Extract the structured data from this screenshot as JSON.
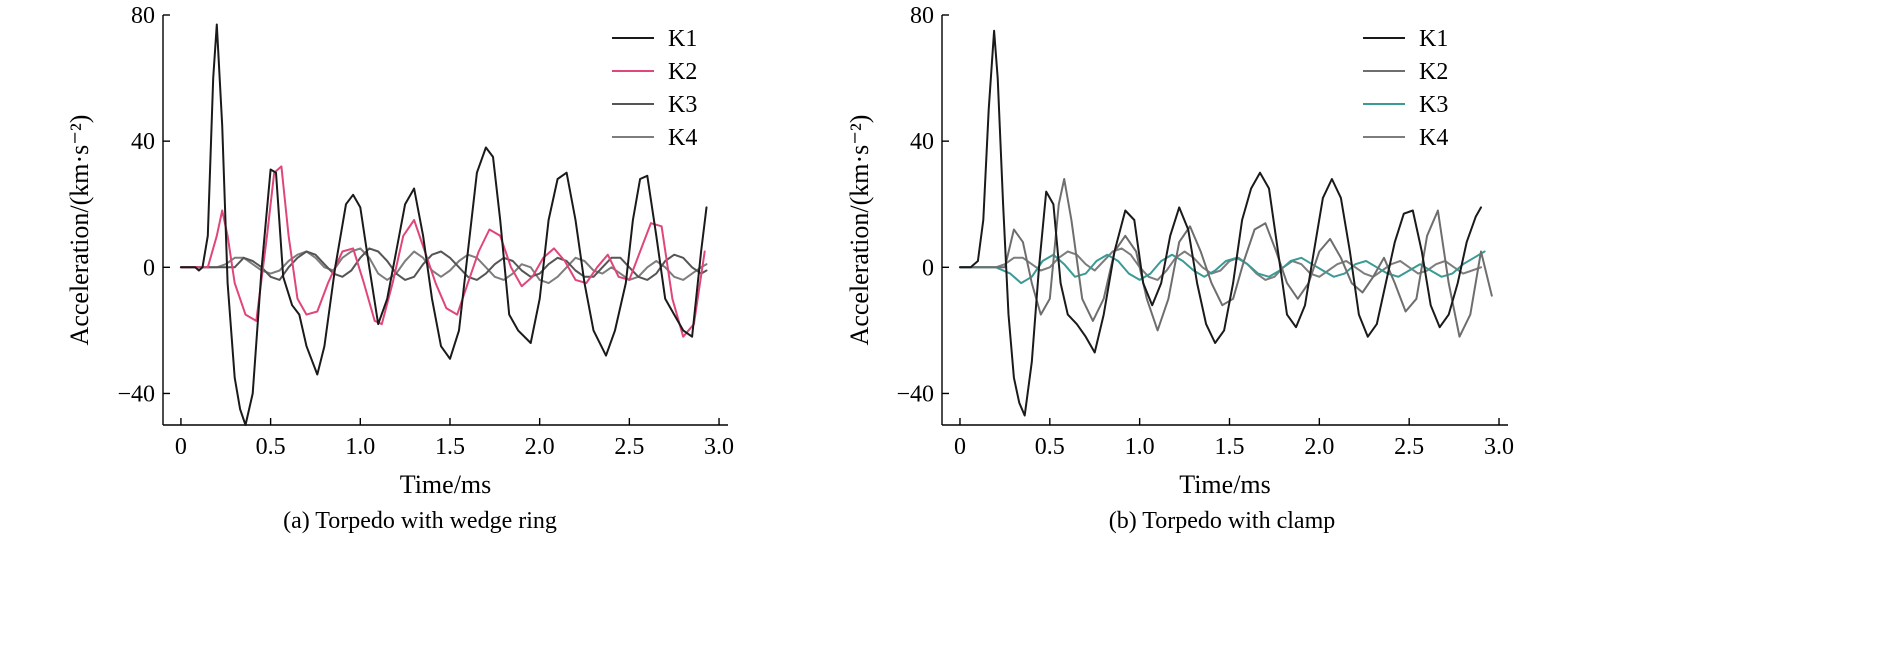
{
  "colors": {
    "K1": "#1a1a1a",
    "K2": "#e0457b",
    "K2b": "#6e6e6e",
    "K3": "#555555",
    "K4": "#7d7d7d",
    "K3teal": "#3a9a94"
  },
  "chart_data": [
    {
      "type": "line",
      "caption": "(a) Torpedo with wedge ring",
      "xlabel": "Time/ms",
      "ylabel": "Acceleration/(km·s⁻²)",
      "xlim": [
        -0.1,
        3.05
      ],
      "ylim": [
        -50,
        80
      ],
      "xticks": [
        0,
        0.5,
        1.0,
        1.5,
        2.0,
        2.5,
        3.0
      ],
      "xtick_labels": [
        "0",
        "0.5",
        "1.0",
        "1.5",
        "2.0",
        "2.5",
        "3.0"
      ],
      "yticks": [
        -40,
        0,
        40,
        80
      ],
      "ytick_labels": [
        "−40",
        "0",
        "40",
        "80"
      ],
      "legend_position": "top-right",
      "series": [
        {
          "name": "K1",
          "color_key": "K1",
          "x": [
            0,
            0.08,
            0.1,
            0.12,
            0.15,
            0.18,
            0.2,
            0.23,
            0.26,
            0.3,
            0.33,
            0.36,
            0.4,
            0.45,
            0.5,
            0.53,
            0.57,
            0.62,
            0.66,
            0.7,
            0.76,
            0.8,
            0.86,
            0.92,
            0.96,
            1.0,
            1.05,
            1.1,
            1.15,
            1.2,
            1.25,
            1.3,
            1.35,
            1.4,
            1.45,
            1.5,
            1.55,
            1.6,
            1.65,
            1.7,
            1.74,
            1.78,
            1.83,
            1.88,
            1.95,
            2.0,
            2.05,
            2.1,
            2.15,
            2.2,
            2.25,
            2.3,
            2.37,
            2.42,
            2.48,
            2.52,
            2.56,
            2.6,
            2.65,
            2.7,
            2.75,
            2.8,
            2.85,
            2.9,
            2.93
          ],
          "y": [
            0,
            0,
            -1,
            0,
            10,
            60,
            77,
            45,
            -5,
            -35,
            -45,
            -50,
            -40,
            0,
            31,
            30,
            -3,
            -12,
            -15,
            -25,
            -34,
            -25,
            0,
            20,
            23,
            19,
            0,
            -18,
            -10,
            5,
            20,
            25,
            10,
            -10,
            -25,
            -29,
            -20,
            5,
            30,
            38,
            35,
            15,
            -15,
            -20,
            -24,
            -10,
            15,
            28,
            30,
            15,
            -5,
            -20,
            -28,
            -20,
            -5,
            15,
            28,
            29,
            10,
            -10,
            -15,
            -20,
            -22,
            5,
            19
          ]
        },
        {
          "name": "K2",
          "color_key": "K2",
          "x": [
            0,
            0.15,
            0.2,
            0.23,
            0.26,
            0.3,
            0.36,
            0.42,
            0.48,
            0.52,
            0.56,
            0.6,
            0.65,
            0.7,
            0.76,
            0.82,
            0.9,
            0.96,
            1.02,
            1.08,
            1.12,
            1.18,
            1.24,
            1.3,
            1.36,
            1.42,
            1.48,
            1.54,
            1.6,
            1.66,
            1.72,
            1.78,
            1.84,
            1.9,
            1.96,
            2.02,
            2.08,
            2.14,
            2.2,
            2.26,
            2.32,
            2.38,
            2.44,
            2.5,
            2.56,
            2.62,
            2.68,
            2.74,
            2.8,
            2.86,
            2.92
          ],
          "y": [
            0,
            0,
            10,
            18,
            10,
            -5,
            -15,
            -17,
            10,
            30,
            32,
            10,
            -10,
            -15,
            -14,
            -5,
            5,
            6,
            -5,
            -17,
            -18,
            -5,
            10,
            15,
            5,
            -5,
            -13,
            -15,
            -5,
            5,
            12,
            10,
            0,
            -6,
            -3,
            3,
            6,
            2,
            -4,
            -5,
            0,
            4,
            -3,
            -4,
            5,
            14,
            13,
            -10,
            -22,
            -18,
            5
          ]
        },
        {
          "name": "K3",
          "color_key": "K3",
          "x": [
            0,
            0.2,
            0.3,
            0.35,
            0.4,
            0.45,
            0.5,
            0.55,
            0.6,
            0.65,
            0.7,
            0.75,
            0.8,
            0.85,
            0.9,
            0.95,
            1.0,
            1.05,
            1.1,
            1.15,
            1.2,
            1.25,
            1.3,
            1.35,
            1.4,
            1.45,
            1.5,
            1.55,
            1.6,
            1.65,
            1.7,
            1.75,
            1.8,
            1.85,
            1.9,
            1.95,
            2.0,
            2.05,
            2.1,
            2.15,
            2.2,
            2.25,
            2.3,
            2.35,
            2.4,
            2.45,
            2.5,
            2.55,
            2.6,
            2.65,
            2.7,
            2.75,
            2.8,
            2.85,
            2.9,
            2.93
          ],
          "y": [
            0,
            0,
            0,
            3,
            2,
            0,
            -3,
            -4,
            0,
            3,
            5,
            4,
            1,
            -2,
            -3,
            -1,
            3,
            6,
            5,
            2,
            -2,
            -4,
            -3,
            1,
            4,
            5,
            3,
            0,
            -3,
            -4,
            -2,
            1,
            3,
            2,
            -1,
            -3,
            -2,
            1,
            3,
            2,
            -1,
            -3,
            -3,
            0,
            3,
            3,
            0,
            -3,
            -4,
            -2,
            2,
            4,
            3,
            0,
            -2,
            -1
          ]
        },
        {
          "name": "K4",
          "color_key": "K4",
          "x": [
            0,
            0.2,
            0.25,
            0.3,
            0.35,
            0.4,
            0.45,
            0.5,
            0.55,
            0.6,
            0.65,
            0.7,
            0.75,
            0.8,
            0.85,
            0.9,
            0.95,
            1.0,
            1.05,
            1.1,
            1.15,
            1.2,
            1.25,
            1.3,
            1.35,
            1.4,
            1.45,
            1.5,
            1.55,
            1.6,
            1.65,
            1.7,
            1.75,
            1.8,
            1.85,
            1.9,
            1.95,
            2.0,
            2.05,
            2.1,
            2.15,
            2.2,
            2.25,
            2.3,
            2.35,
            2.4,
            2.45,
            2.5,
            2.55,
            2.6,
            2.65,
            2.7,
            2.75,
            2.8,
            2.85,
            2.9,
            2.93
          ],
          "y": [
            0,
            0,
            1,
            3,
            3,
            1,
            -1,
            -2,
            -1,
            2,
            4,
            5,
            3,
            0,
            -1,
            3,
            5,
            6,
            3,
            -2,
            -4,
            -2,
            2,
            5,
            3,
            -1,
            -3,
            -1,
            2,
            4,
            3,
            0,
            -3,
            -4,
            -2,
            1,
            0,
            -4,
            -5,
            -3,
            0,
            3,
            2,
            -1,
            -2,
            0,
            -2,
            -4,
            -3,
            0,
            2,
            0,
            -3,
            -4,
            -2,
            0,
            1
          ]
        }
      ]
    },
    {
      "type": "line",
      "caption": "(b) Torpedo with clamp",
      "xlabel": "Time/ms",
      "ylabel": "Acceleration/(km·s⁻²)",
      "xlim": [
        -0.1,
        3.05
      ],
      "ylim": [
        -50,
        80
      ],
      "xticks": [
        0,
        0.5,
        1.0,
        1.5,
        2.0,
        2.5,
        3.0
      ],
      "xtick_labels": [
        "0",
        "0.5",
        "1.0",
        "1.5",
        "2.0",
        "2.5",
        "3.0"
      ],
      "yticks": [
        -40,
        0,
        40,
        80
      ],
      "ytick_labels": [
        "−40",
        "0",
        "40",
        "80"
      ],
      "legend_position": "top-right",
      "series": [
        {
          "name": "K1",
          "color_key": "K1",
          "x": [
            0,
            0.06,
            0.1,
            0.13,
            0.16,
            0.19,
            0.21,
            0.24,
            0.27,
            0.3,
            0.33,
            0.36,
            0.4,
            0.44,
            0.48,
            0.52,
            0.56,
            0.6,
            0.65,
            0.7,
            0.75,
            0.8,
            0.86,
            0.92,
            0.97,
            1.02,
            1.07,
            1.12,
            1.17,
            1.22,
            1.27,
            1.32,
            1.37,
            1.42,
            1.47,
            1.52,
            1.57,
            1.62,
            1.67,
            1.72,
            1.77,
            1.82,
            1.87,
            1.92,
            1.97,
            2.02,
            2.07,
            2.12,
            2.17,
            2.22,
            2.27,
            2.32,
            2.37,
            2.42,
            2.47,
            2.52,
            2.57,
            2.62,
            2.67,
            2.72,
            2.77,
            2.82,
            2.87,
            2.9
          ],
          "y": [
            0,
            0,
            2,
            15,
            50,
            75,
            60,
            20,
            -15,
            -35,
            -43,
            -47,
            -30,
            0,
            24,
            20,
            -5,
            -15,
            -18,
            -22,
            -27,
            -15,
            5,
            18,
            15,
            -5,
            -12,
            -5,
            10,
            19,
            12,
            -5,
            -18,
            -24,
            -20,
            -5,
            15,
            25,
            30,
            25,
            5,
            -15,
            -19,
            -12,
            5,
            22,
            28,
            22,
            5,
            -15,
            -22,
            -18,
            -5,
            8,
            17,
            18,
            5,
            -12,
            -19,
            -15,
            -5,
            8,
            16,
            19
          ]
        },
        {
          "name": "K2",
          "color_key": "K2b",
          "x": [
            0,
            0.25,
            0.3,
            0.35,
            0.4,
            0.45,
            0.5,
            0.55,
            0.58,
            0.62,
            0.68,
            0.74,
            0.8,
            0.86,
            0.92,
            0.98,
            1.04,
            1.1,
            1.16,
            1.22,
            1.28,
            1.34,
            1.4,
            1.46,
            1.52,
            1.58,
            1.64,
            1.7,
            1.76,
            1.82,
            1.88,
            1.94,
            2.0,
            2.06,
            2.12,
            2.18,
            2.24,
            2.3,
            2.36,
            2.42,
            2.48,
            2.54,
            2.6,
            2.66,
            2.72,
            2.78,
            2.84,
            2.9,
            2.96
          ],
          "y": [
            0,
            0,
            12,
            8,
            -5,
            -15,
            -10,
            20,
            28,
            15,
            -10,
            -17,
            -10,
            5,
            10,
            5,
            -10,
            -20,
            -10,
            8,
            13,
            5,
            -5,
            -12,
            -10,
            2,
            12,
            14,
            5,
            -5,
            -10,
            -5,
            5,
            9,
            3,
            -5,
            -8,
            -3,
            3,
            -5,
            -14,
            -10,
            10,
            18,
            -5,
            -22,
            -15,
            5,
            -9
          ]
        },
        {
          "name": "K3",
          "color_key": "K3teal",
          "x": [
            0,
            0.2,
            0.28,
            0.34,
            0.4,
            0.46,
            0.52,
            0.58,
            0.64,
            0.7,
            0.76,
            0.82,
            0.88,
            0.94,
            1.0,
            1.06,
            1.12,
            1.18,
            1.24,
            1.3,
            1.36,
            1.42,
            1.48,
            1.54,
            1.6,
            1.66,
            1.72,
            1.78,
            1.84,
            1.9,
            1.96,
            2.02,
            2.08,
            2.14,
            2.2,
            2.26,
            2.32,
            2.38,
            2.44,
            2.5,
            2.56,
            2.62,
            2.68,
            2.74,
            2.8,
            2.86,
            2.92
          ],
          "y": [
            0,
            0,
            -2,
            -5,
            -3,
            2,
            4,
            1,
            -3,
            -2,
            2,
            4,
            2,
            -2,
            -4,
            -2,
            2,
            4,
            2,
            -1,
            -3,
            -1,
            2,
            3,
            1,
            -2,
            -3,
            -1,
            2,
            3,
            1,
            -1,
            -3,
            -2,
            1,
            2,
            0,
            -2,
            -3,
            -1,
            1,
            -1,
            -3,
            -2,
            1,
            3,
            5
          ]
        },
        {
          "name": "K4",
          "color_key": "K4",
          "x": [
            0,
            0.2,
            0.25,
            0.3,
            0.35,
            0.4,
            0.45,
            0.5,
            0.55,
            0.6,
            0.65,
            0.7,
            0.75,
            0.8,
            0.85,
            0.9,
            0.95,
            1.0,
            1.05,
            1.1,
            1.15,
            1.2,
            1.25,
            1.3,
            1.35,
            1.4,
            1.45,
            1.5,
            1.55,
            1.6,
            1.65,
            1.7,
            1.75,
            1.8,
            1.85,
            1.9,
            1.95,
            2.0,
            2.05,
            2.1,
            2.15,
            2.2,
            2.25,
            2.3,
            2.35,
            2.4,
            2.45,
            2.5,
            2.55,
            2.6,
            2.65,
            2.7,
            2.75,
            2.8,
            2.85,
            2.9
          ],
          "y": [
            0,
            0,
            1,
            3,
            3,
            1,
            -1,
            0,
            3,
            5,
            4,
            1,
            -1,
            2,
            5,
            6,
            4,
            0,
            -3,
            -4,
            -1,
            3,
            5,
            3,
            0,
            -2,
            -1,
            2,
            3,
            1,
            -2,
            -4,
            -3,
            0,
            2,
            1,
            -2,
            -3,
            -1,
            1,
            2,
            0,
            -2,
            -3,
            -1,
            1,
            2,
            0,
            -2,
            -1,
            1,
            2,
            0,
            -2,
            -1,
            0
          ]
        }
      ]
    }
  ]
}
